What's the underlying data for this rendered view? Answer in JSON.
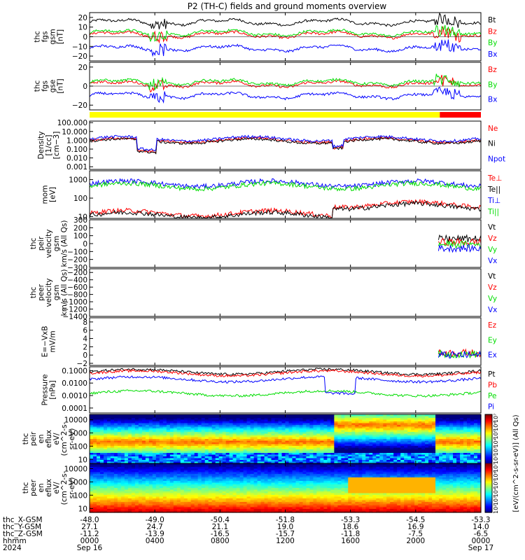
{
  "title": "P2 (TH-C) fields and ground moments overview",
  "colors": {
    "black": "#000000",
    "red": "#ff0000",
    "green": "#00dd00",
    "blue": "#0000ff",
    "yellow": "#ffff00"
  },
  "chart_data": [
    {
      "type": "line",
      "panel": "fgs_gsm",
      "ylabel": [
        "thc",
        "fgs",
        "gsm",
        "[nT]"
      ],
      "yticks": [
        "20",
        "10",
        "0",
        "−10",
        "−20"
      ],
      "ylim": [
        -25,
        25
      ],
      "series": [
        {
          "name": "Bt",
          "color": "#000000",
          "level": 15
        },
        {
          "name": "Bz",
          "color": "#ff0000",
          "level": 2
        },
        {
          "name": "By",
          "color": "#00dd00",
          "level": 4
        },
        {
          "name": "Bx",
          "color": "#0000ff",
          "level": -12
        }
      ]
    },
    {
      "type": "line",
      "panel": "fgs_gse",
      "ylabel": [
        "thc",
        "fgs",
        "gse",
        "[nT]"
      ],
      "yticks": [
        "20",
        "0",
        "−20"
      ],
      "ylim": [
        -25,
        25
      ],
      "series": [
        {
          "name": "Bz",
          "color": "#ff0000",
          "level": 2
        },
        {
          "name": "By",
          "color": "#00dd00",
          "level": 4
        },
        {
          "name": "Bx",
          "color": "#0000ff",
          "level": -10
        }
      ]
    },
    {
      "type": "line",
      "panel": "density",
      "ylabel": [
        "Density",
        "[1/cc]",
        "[cm−3]"
      ],
      "yticks": [
        "100.000",
        "10.000",
        "1.000",
        "0.100",
        "0.010",
        "0.001"
      ],
      "ylim": [
        0.0005,
        150
      ],
      "log": true,
      "series": [
        {
          "name": "Ne",
          "color": "#ff0000",
          "level": 1.0
        },
        {
          "name": "Ni",
          "color": "#000000",
          "level": 0.8
        },
        {
          "name": "Npot",
          "color": "#0000ff",
          "level": 1.5
        }
      ]
    },
    {
      "type": "line",
      "panel": "temperature",
      "ylabel": [
        "mom",
        "[eV]"
      ],
      "yticks": [
        "1000",
        "100",
        "10"
      ],
      "ylim": [
        8,
        3000
      ],
      "log": true,
      "series": [
        {
          "name": "Te⊥",
          "color": "#ff0000",
          "level": 15
        },
        {
          "name": "Te||",
          "color": "#000000",
          "level": 12
        },
        {
          "name": "Ti⊥",
          "color": "#0000ff",
          "level": 600
        },
        {
          "name": "Ti||",
          "color": "#00dd00",
          "level": 450
        }
      ]
    },
    {
      "type": "line",
      "panel": "peir_velocity",
      "ylabel": [
        "thc",
        "peir",
        "velocity",
        "gsm",
        "km/s (All Qs)"
      ],
      "yticks": [
        "300",
        "200",
        "100",
        "0",
        "−100",
        "−200",
        "−300"
      ],
      "ylim": [
        -300,
        300
      ],
      "series": [
        {
          "name": "Vt",
          "color": "#000000"
        },
        {
          "name": "Vz",
          "color": "#ff0000"
        },
        {
          "name": "Vy",
          "color": "#00dd00"
        },
        {
          "name": "Vx",
          "color": "#0000ff"
        }
      ]
    },
    {
      "type": "line",
      "panel": "peer_velocity",
      "ylabel": [
        "thc",
        "peer",
        "velocity",
        "gsm",
        "km/s (All Qs)"
      ],
      "yticks": [
        "−200",
        "−400",
        "−600",
        "−800",
        "−1000",
        "−1200",
        "−1400"
      ],
      "ylim": [
        -1400,
        -100
      ],
      "series": [
        {
          "name": "Vt",
          "color": "#000000"
        },
        {
          "name": "Vz",
          "color": "#ff0000"
        },
        {
          "name": "Vy",
          "color": "#00dd00"
        },
        {
          "name": "Vx",
          "color": "#0000ff"
        }
      ]
    },
    {
      "type": "line",
      "panel": "efield",
      "ylabel": [
        "E=−VxB",
        "mV/m"
      ],
      "yticks": [
        "8",
        "6",
        "4",
        "2",
        "0",
        "−2"
      ],
      "ylim": [
        -2.5,
        9
      ],
      "series": [
        {
          "name": "Ez",
          "color": "#ff0000"
        },
        {
          "name": "Ey",
          "color": "#00dd00"
        },
        {
          "name": "Ex",
          "color": "#0000ff"
        }
      ]
    },
    {
      "type": "line",
      "panel": "pressure",
      "ylabel": [
        "Pressure",
        "[nPa]"
      ],
      "yticks": [
        "0.1000",
        "0.0100",
        "0.0010",
        "0.0001"
      ],
      "ylim": [
        4e-05,
        0.2
      ],
      "log": true,
      "series": [
        {
          "name": "Pt",
          "color": "#000000",
          "level": 0.08
        },
        {
          "name": "Pb",
          "color": "#ff0000",
          "level": 0.06
        },
        {
          "name": "Pe",
          "color": "#00dd00",
          "level": 0.0015
        },
        {
          "name": "Pi",
          "color": "#0000ff",
          "level": 0.02
        }
      ]
    },
    {
      "type": "heatmap",
      "panel": "peir_eflux",
      "ylabel": [
        "thc",
        "peir",
        "en",
        "eflux",
        "eV/",
        "(cm^2-s-",
        "sr-eV)"
      ],
      "yticks": [
        "10000",
        "1000",
        "100",
        "10"
      ],
      "ylim": [
        5,
        25000
      ],
      "log": true
    },
    {
      "type": "heatmap",
      "panel": "peer_eflux",
      "ylabel": [
        "thc",
        "peer",
        "en",
        "eflux",
        "eV/",
        "(cm^2-s-",
        "sr-eV)"
      ],
      "yticks": [
        "10000",
        "1000",
        "100",
        "10"
      ],
      "ylim": [
        5,
        25000
      ],
      "log": true
    }
  ],
  "colorbar": {
    "labels": [
      "10⁷",
      "10⁶",
      "10⁵",
      "10⁴",
      "10³",
      "10²",
      "10⁷",
      "10⁶",
      "10⁵",
      "10⁴",
      "10³",
      "10²"
    ],
    "title": "[eV/(cm^2-s-sr-eV)] (All Qs)"
  },
  "mode_bar": {
    "segments": [
      {
        "color": "#ffff00",
        "from": 0.0,
        "to": 0.895
      },
      {
        "color": "#ff0000",
        "from": 0.895,
        "to": 1.0
      }
    ]
  },
  "x_axis": {
    "rows": [
      {
        "label": "thc_X-GSM",
        "values": [
          "-48.0",
          "-49.0",
          "-50.4",
          "-51.8",
          "-53.3",
          "-54.5",
          "-53.3"
        ]
      },
      {
        "label": "thc_Y-GSM",
        "values": [
          "27.1",
          "24.7",
          "21.1",
          "19.0",
          "18.6",
          "16.9",
          "14.0"
        ]
      },
      {
        "label": "thc_Z-GSM",
        "values": [
          "-11.2",
          "-13.9",
          "-16.5",
          "-15.7",
          "-11.8",
          "-7.5",
          "-6.5"
        ]
      },
      {
        "label": "hhmm",
        "values": [
          "0000",
          "0400",
          "0800",
          "1200",
          "1600",
          "2000",
          "0000"
        ]
      },
      {
        "label": "2024",
        "values": [
          "Sep 16",
          "",
          "",
          "",
          "",
          "",
          "Sep 17"
        ]
      }
    ]
  }
}
